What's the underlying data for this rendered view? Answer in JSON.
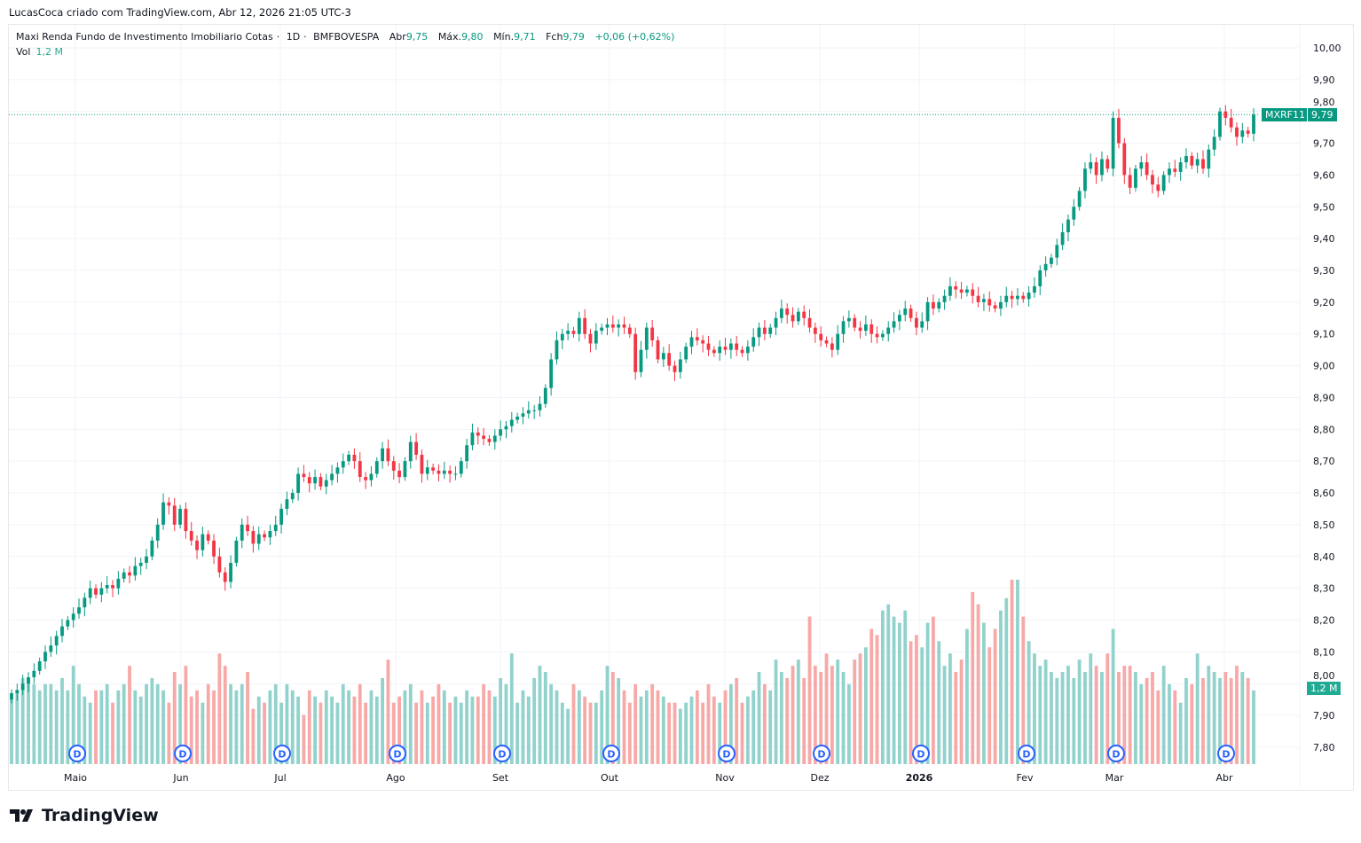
{
  "header": {
    "credit": "LucasCoca criado com TradingView.com, Abr 12, 2026 21:05 UTC-3"
  },
  "legend": {
    "name": "Maxi Renda Fundo de Investimento Imobiliario Cotas",
    "interval": "1D",
    "exchange": "BMFBOVESPA",
    "open_label": "Abr",
    "open": "9,75",
    "high_label": "Máx.",
    "high": "9,80",
    "low_label": "Mín.",
    "low": "9,71",
    "close_label": "Fch",
    "close": "9,79",
    "change": "+0,06 (+0,62%)",
    "vol_label": "Vol",
    "vol": "1,2 M"
  },
  "price_tag": {
    "symbol": "MXRF11",
    "price": "9,79"
  },
  "volume_tag": "1,2 M",
  "brand": "TradingView",
  "colors": {
    "up": "#089981",
    "down": "#f23645",
    "vol_up": "#92d2cc",
    "vol_down": "#f7a9a7",
    "accent": "#089981"
  },
  "chart_data": {
    "type": "candlestick",
    "ylim": [
      7.75,
      10.02
    ],
    "y_ticks": [
      "10,00",
      "9,90",
      "9,80",
      "9,70",
      "9,60",
      "9,50",
      "9,40",
      "9,30",
      "9,20",
      "9,10",
      "9,00",
      "8,90",
      "8,80",
      "8,70",
      "8,60",
      "8,50",
      "8,40",
      "8,30",
      "8,20",
      "8,10",
      "8,00",
      "7,90",
      "7,80"
    ],
    "x_ticks": [
      "Maio",
      "Jun",
      "Jul",
      "Ago",
      "Set",
      "Out",
      "Nov",
      "Dez",
      "2026",
      "Fev",
      "Mar",
      "Abr"
    ],
    "dividend_marker": "D",
    "close": [
      7.97,
      7.98,
      8.0,
      8.02,
      8.04,
      8.07,
      8.1,
      8.12,
      8.15,
      8.18,
      8.2,
      8.22,
      8.24,
      8.27,
      8.3,
      8.28,
      8.3,
      8.31,
      8.3,
      8.33,
      8.35,
      8.34,
      8.37,
      8.38,
      8.4,
      8.45,
      8.5,
      8.57,
      8.56,
      8.5,
      8.55,
      8.48,
      8.45,
      8.42,
      8.47,
      8.45,
      8.4,
      8.35,
      8.32,
      8.38,
      8.45,
      8.5,
      8.48,
      8.44,
      8.47,
      8.46,
      8.48,
      8.5,
      8.55,
      8.58,
      8.6,
      8.66,
      8.65,
      8.63,
      8.65,
      8.62,
      8.64,
      8.66,
      8.68,
      8.7,
      8.72,
      8.7,
      8.65,
      8.64,
      8.66,
      8.7,
      8.74,
      8.7,
      8.67,
      8.65,
      8.7,
      8.76,
      8.72,
      8.66,
      8.68,
      8.67,
      8.66,
      8.67,
      8.66,
      8.66,
      8.7,
      8.75,
      8.79,
      8.78,
      8.77,
      8.76,
      8.78,
      8.8,
      8.81,
      8.83,
      8.84,
      8.85,
      8.86,
      8.86,
      8.88,
      8.93,
      9.02,
      9.08,
      9.1,
      9.11,
      9.1,
      9.15,
      9.1,
      9.07,
      9.11,
      9.12,
      9.13,
      9.12,
      9.13,
      9.12,
      9.1,
      8.98,
      9.05,
      9.12,
      9.08,
      9.02,
      9.04,
      9.0,
      8.98,
      9.02,
      9.06,
      9.09,
      9.08,
      9.07,
      9.05,
      9.04,
      9.06,
      9.05,
      9.07,
      9.05,
      9.04,
      9.06,
      9.09,
      9.12,
      9.1,
      9.12,
      9.15,
      9.18,
      9.16,
      9.14,
      9.17,
      9.15,
      9.12,
      9.1,
      9.08,
      9.07,
      9.05,
      9.1,
      9.14,
      9.15,
      9.12,
      9.11,
      9.13,
      9.1,
      9.09,
      9.1,
      9.12,
      9.14,
      9.16,
      9.18,
      9.15,
      9.12,
      9.14,
      9.2,
      9.18,
      9.2,
      9.22,
      9.25,
      9.24,
      9.23,
      9.24,
      9.22,
      9.2,
      9.21,
      9.19,
      9.18,
      9.2,
      9.22,
      9.21,
      9.22,
      9.21,
      9.23,
      9.25,
      9.3,
      9.32,
      9.34,
      9.38,
      9.42,
      9.46,
      9.5,
      9.55,
      9.62,
      9.64,
      9.6,
      9.65,
      9.62,
      9.78,
      9.7,
      9.6,
      9.56,
      9.62,
      9.64,
      9.6,
      9.57,
      9.55,
      9.6,
      9.62,
      9.61,
      9.64,
      9.66,
      9.63,
      9.65,
      9.62,
      9.68,
      9.72,
      9.8,
      9.78,
      9.75,
      9.72,
      9.74,
      9.73,
      9.79
    ],
    "volume_millions": [
      1.1,
      1.2,
      1.4,
      1.4,
      1.3,
      1.2,
      1.3,
      1.3,
      1.2,
      1.4,
      1.2,
      1.6,
      1.3,
      1.1,
      1.0,
      1.2,
      1.2,
      1.3,
      1.0,
      1.2,
      1.3,
      1.6,
      1.2,
      1.1,
      1.3,
      1.4,
      1.3,
      1.2,
      1.0,
      1.5,
      1.3,
      1.6,
      1.1,
      1.2,
      1.0,
      1.3,
      1.2,
      1.8,
      1.6,
      1.3,
      1.2,
      1.3,
      1.5,
      0.9,
      1.1,
      1.0,
      1.2,
      1.3,
      1.0,
      1.3,
      1.2,
      1.1,
      0.8,
      1.2,
      1.1,
      1.0,
      1.2,
      1.1,
      1.0,
      1.3,
      1.2,
      1.1,
      1.3,
      1.0,
      1.2,
      1.1,
      1.4,
      1.7,
      1.0,
      1.1,
      1.2,
      1.3,
      1.0,
      1.2,
      1.0,
      1.1,
      1.3,
      1.2,
      1.0,
      1.1,
      1.0,
      1.2,
      1.1,
      1.1,
      1.3,
      1.2,
      1.1,
      1.4,
      1.3,
      1.8,
      1.0,
      1.2,
      1.1,
      1.4,
      1.6,
      1.5,
      1.3,
      1.2,
      1.0,
      0.9,
      1.3,
      1.2,
      1.1,
      1.0,
      1.0,
      1.2,
      1.6,
      1.5,
      1.4,
      1.2,
      1.0,
      1.3,
      1.1,
      1.2,
      1.3,
      1.2,
      1.1,
      1.0,
      1.0,
      0.9,
      1.0,
      1.1,
      1.2,
      1.0,
      1.3,
      1.1,
      1.0,
      1.2,
      1.3,
      1.4,
      1.0,
      1.1,
      1.2,
      1.5,
      1.3,
      1.2,
      1.7,
      1.5,
      1.4,
      1.6,
      1.7,
      1.4,
      2.4,
      1.6,
      1.5,
      1.8,
      1.6,
      1.7,
      1.5,
      1.3,
      1.7,
      1.8,
      1.9,
      2.2,
      2.1,
      2.5,
      2.6,
      2.4,
      2.3,
      2.5,
      2.0,
      2.1,
      1.9,
      2.3,
      2.4,
      2.0,
      1.6,
      1.8,
      1.5,
      1.7,
      2.2,
      2.8,
      2.6,
      2.3,
      1.9,
      2.2,
      2.5,
      2.7,
      3.0,
      3.0,
      2.4,
      2.0,
      1.8,
      1.6,
      1.7,
      1.5,
      1.4,
      1.5,
      1.6,
      1.4,
      1.7,
      1.5,
      1.8,
      1.6,
      1.5,
      1.8,
      2.2,
      1.5,
      1.6,
      1.6,
      1.5,
      1.3,
      1.4,
      1.5,
      1.2,
      1.6,
      1.3,
      1.2,
      1.0,
      1.4,
      1.3,
      1.8,
      1.4,
      1.6,
      1.5,
      1.4,
      1.5,
      1.4,
      1.6,
      1.5,
      1.4,
      1.2
    ],
    "last_price": 9.79,
    "grid": true
  }
}
